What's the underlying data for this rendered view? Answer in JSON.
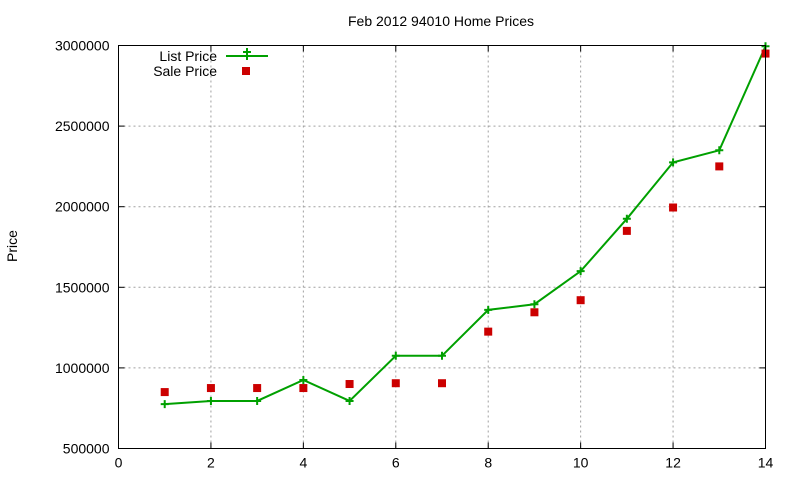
{
  "chart_data": {
    "type": "line",
    "title": "Feb 2012 94010 Home Prices",
    "xlabel": "",
    "ylabel": "Price",
    "xlim": [
      0,
      14
    ],
    "ylim": [
      500000,
      3000000
    ],
    "x_ticks": [
      "0",
      "2",
      "4",
      "6",
      "8",
      "10",
      "12",
      "14"
    ],
    "y_ticks": [
      "500000",
      "1000000",
      "1500000",
      "2000000",
      "2500000",
      "3000000"
    ],
    "grid": true,
    "legend_position": "top-left",
    "series": [
      {
        "name": "List Price",
        "style": "line-with-plus-markers",
        "color": "#00a000",
        "x": [
          1,
          2,
          3,
          4,
          5,
          6,
          7,
          8,
          9,
          10,
          11,
          12,
          13,
          14
        ],
        "values": [
          775000,
          795000,
          795000,
          925000,
          795000,
          1075000,
          1075000,
          1360000,
          1395000,
          1600000,
          1925000,
          2275000,
          2350000,
          2995000
        ]
      },
      {
        "name": "Sale Price",
        "style": "square-markers",
        "color": "#cc0000",
        "x": [
          1,
          2,
          3,
          4,
          5,
          6,
          7,
          8,
          9,
          10,
          11,
          12,
          13,
          14
        ],
        "values": [
          850000,
          875000,
          875000,
          875000,
          900000,
          905000,
          905000,
          1225000,
          1345000,
          1420000,
          1850000,
          1995000,
          2250000,
          2950000
        ]
      }
    ]
  }
}
